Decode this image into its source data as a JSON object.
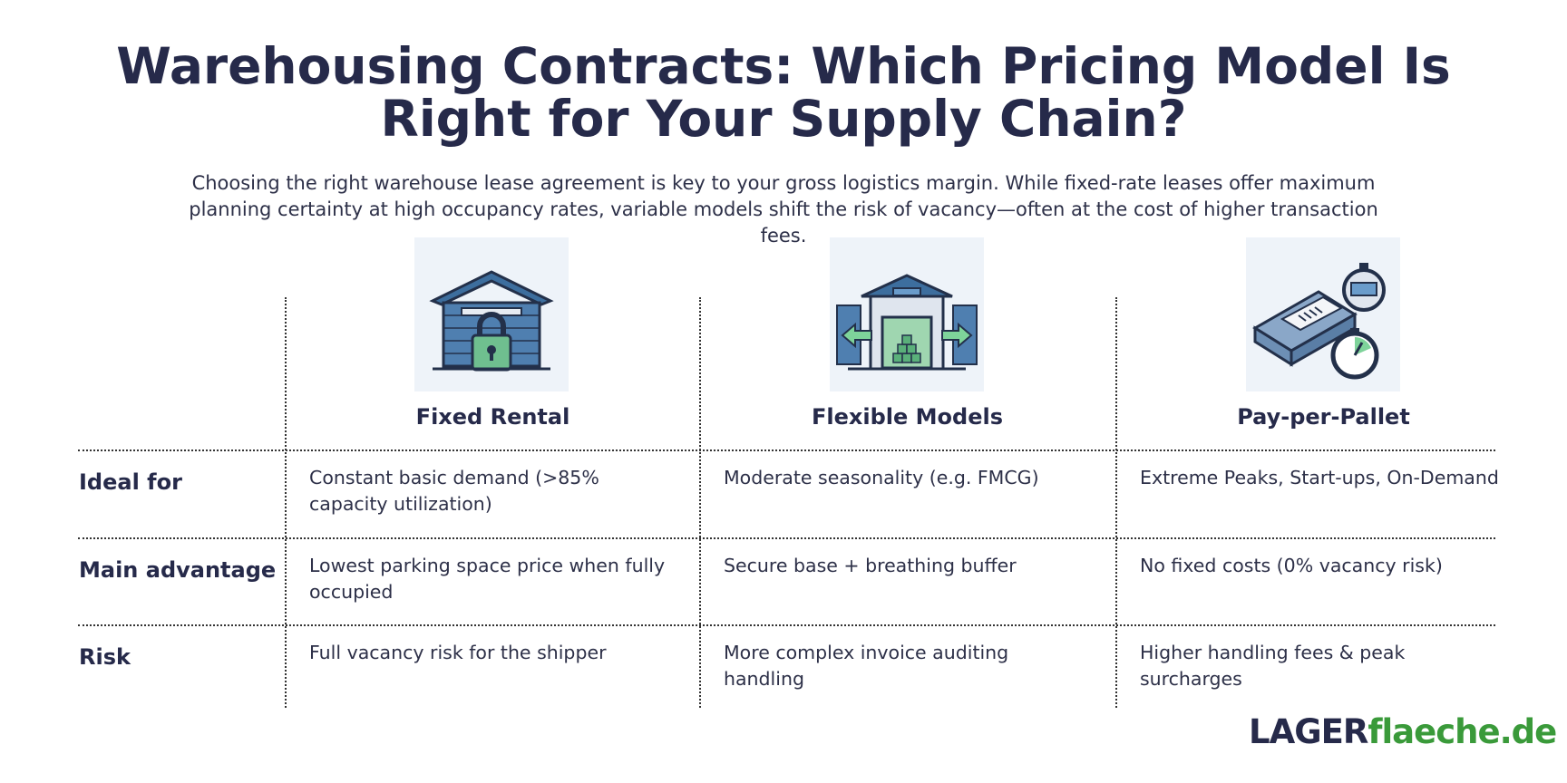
{
  "header": {
    "title": "Warehousing Contracts: Which Pricing Model Is Right for Your Supply Chain?",
    "subtitle": "Choosing the right warehouse lease agreement is key to your gross logistics margin. While fixed-rate leases offer maximum planning certainty at high occupancy rates, variable models shift the risk of vacancy—often at the cost of higher transaction fees."
  },
  "table": {
    "columns": [
      "Fixed Rental",
      "Flexible Models",
      "Pay-per-Pallet"
    ],
    "rows": [
      {
        "label": "Ideal for",
        "cells": [
          [
            "Constant basic demand (>85%",
            "capacity utilization)"
          ],
          [
            "Moderate seasonality (e.g. FMCG)"
          ],
          [
            "Extreme Peaks, Start-ups, On-Demand"
          ]
        ]
      },
      {
        "label": "Main advantage",
        "cells": [
          [
            "Lowest parking space price when fully",
            "occupied"
          ],
          [
            "Secure base + breathing buffer"
          ],
          [
            "No fixed costs (0% vacancy risk)"
          ]
        ]
      },
      {
        "label": "Risk",
        "cells": [
          [
            "Full vacancy risk for the shipper"
          ],
          [
            "More complex invoice auditing",
            "handling"
          ],
          [
            "Higher handling fees & peak",
            "surcharges"
          ]
        ]
      }
    ]
  },
  "logo": {
    "part1": "LAGER",
    "part2": "flaeche.de"
  }
}
